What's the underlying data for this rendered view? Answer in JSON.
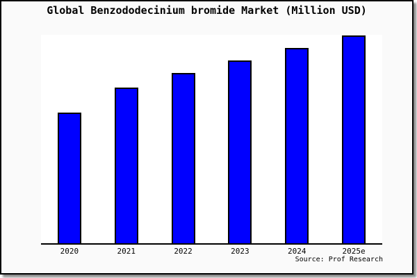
{
  "chart_data": {
    "type": "bar",
    "title": "Global Benzododecinium bromide Market (Million USD)",
    "categories": [
      "2020",
      "2021",
      "2022",
      "2023",
      "2024",
      "2025e"
    ],
    "series": [
      {
        "name": "Global Benzododecinium bromide Market",
        "values": [
          63,
          75,
          82,
          88,
          94,
          100
        ]
      }
    ],
    "values_note": "no y-axis ticks shown; values estimated from bar heights relative to 2025e = 100",
    "xlabel": "",
    "ylabel": "",
    "ylim": [
      0,
      100
    ],
    "grid": false,
    "legend_position": "none",
    "y_axis_visible": false,
    "source_note": "Source: Prof Research",
    "bar_color": "#0000ff",
    "bar_border_color": "#000000"
  },
  "frame": {
    "page_background": "#fafafa",
    "plot_background": "#ffffff",
    "border_color": "#000000",
    "shadow_color": "#8c8c8c"
  }
}
